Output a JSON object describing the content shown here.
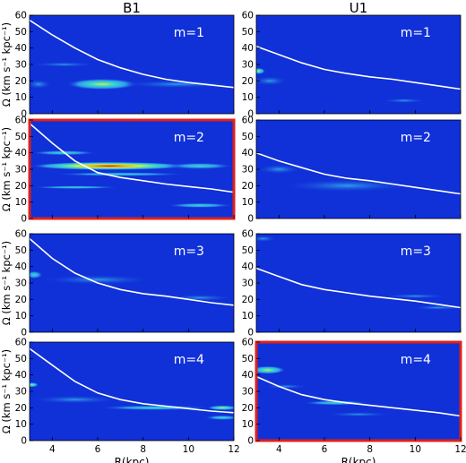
{
  "figure": {
    "column_titles": [
      "B1",
      "U1"
    ],
    "ylabel": "Ω (km s⁻¹ kpc⁻¹)",
    "xlabel": "R(kpc)",
    "colors": {
      "background": "#1030d8",
      "curve": "#ffffff",
      "highlight": "#e0201a"
    }
  },
  "chart_data": [
    {
      "type": "heatmap",
      "column": "B1",
      "row": 1,
      "label": "m=1",
      "highlight": false,
      "xlim": [
        3,
        12
      ],
      "ylim": [
        0,
        60
      ],
      "xticks": [
        4,
        6,
        8,
        10,
        12
      ],
      "yticks": [
        0,
        10,
        20,
        30,
        40,
        50,
        60
      ],
      "curve": {
        "x": [
          3,
          4,
          5,
          6,
          7,
          8,
          9,
          10,
          11,
          12
        ],
        "y": [
          57,
          48,
          40,
          33,
          28,
          24,
          21,
          19,
          17.5,
          16
        ]
      },
      "features": [
        {
          "x": 6.2,
          "y": 18,
          "sx": 1.6,
          "sy": 3.5,
          "level": 3
        },
        {
          "x": 3.4,
          "y": 18,
          "sx": 0.6,
          "sy": 3,
          "level": 1
        },
        {
          "x": 9.5,
          "y": 18,
          "sx": 2.5,
          "sy": 2.5,
          "level": 1
        },
        {
          "x": 4.5,
          "y": 30,
          "sx": 1.5,
          "sy": 1.5,
          "level": 1
        }
      ]
    },
    {
      "type": "heatmap",
      "column": "U1",
      "row": 1,
      "label": "m=1",
      "highlight": false,
      "xlim": [
        3,
        12
      ],
      "ylim": [
        0,
        60
      ],
      "xticks": [
        4,
        6,
        8,
        10,
        12
      ],
      "yticks": [
        0,
        10,
        20,
        30,
        40,
        50,
        60
      ],
      "curve": {
        "x": [
          3,
          4,
          5,
          6,
          7,
          8,
          9,
          10,
          11,
          12
        ],
        "y": [
          41,
          36,
          31,
          27,
          24.5,
          22.5,
          21,
          19,
          17,
          15
        ]
      },
      "features": [
        {
          "x": 3.1,
          "y": 26,
          "sx": 0.3,
          "sy": 2,
          "level": 3
        },
        {
          "x": 3.6,
          "y": 20,
          "sx": 0.8,
          "sy": 3,
          "level": 1
        },
        {
          "x": 9.5,
          "y": 8,
          "sx": 1,
          "sy": 1.5,
          "level": 1
        }
      ]
    },
    {
      "type": "heatmap",
      "column": "B1",
      "row": 2,
      "label": "m=2",
      "highlight": true,
      "xlim": [
        3,
        12
      ],
      "ylim": [
        0,
        60
      ],
      "xticks": [
        4,
        6,
        8,
        10,
        12
      ],
      "yticks": [
        0,
        10,
        20,
        30,
        40,
        50,
        60
      ],
      "curve": {
        "x": [
          3,
          4,
          5,
          6,
          7,
          8,
          9,
          10,
          11,
          12
        ],
        "y": [
          58,
          46,
          35,
          28,
          25,
          23,
          21,
          19.5,
          18,
          16
        ]
      },
      "features": [
        {
          "x": 6.5,
          "y": 32,
          "sx": 3.5,
          "sy": 2.5,
          "level": 5
        },
        {
          "x": 10.5,
          "y": 32,
          "sx": 1.5,
          "sy": 2,
          "level": 2
        },
        {
          "x": 4.5,
          "y": 40,
          "sx": 1.5,
          "sy": 1.5,
          "level": 2
        },
        {
          "x": 7,
          "y": 27,
          "sx": 3,
          "sy": 1.2,
          "level": 2
        },
        {
          "x": 5,
          "y": 19,
          "sx": 2,
          "sy": 1,
          "level": 2
        },
        {
          "x": 10.5,
          "y": 8,
          "sx": 1.5,
          "sy": 1.5,
          "level": 2
        }
      ]
    },
    {
      "type": "heatmap",
      "column": "U1",
      "row": 2,
      "label": "m=2",
      "highlight": false,
      "xlim": [
        3,
        12
      ],
      "ylim": [
        0,
        60
      ],
      "xticks": [
        4,
        6,
        8,
        10,
        12
      ],
      "yticks": [
        0,
        10,
        20,
        30,
        40,
        50,
        60
      ],
      "curve": {
        "x": [
          3,
          4,
          5,
          6,
          7,
          8,
          9,
          10,
          11,
          12
        ],
        "y": [
          40,
          35,
          31,
          27,
          24.5,
          23,
          21,
          19,
          17,
          15
        ]
      },
      "features": [
        {
          "x": 7,
          "y": 20,
          "sx": 3,
          "sy": 4,
          "level": 1
        },
        {
          "x": 4,
          "y": 30,
          "sx": 1,
          "sy": 3,
          "level": 1
        }
      ]
    },
    {
      "type": "heatmap",
      "column": "B1",
      "row": 3,
      "label": "m=3",
      "highlight": false,
      "xlim": [
        3,
        12
      ],
      "ylim": [
        0,
        60
      ],
      "xticks": [
        4,
        6,
        8,
        10,
        12
      ],
      "yticks": [
        0,
        10,
        20,
        30,
        40,
        50,
        60
      ],
      "curve": {
        "x": [
          3,
          4,
          5,
          6,
          7,
          8,
          9,
          10,
          11,
          12
        ],
        "y": [
          57,
          45,
          36,
          30,
          26,
          23.5,
          22,
          20,
          18,
          16.5
        ]
      },
      "features": [
        {
          "x": 3.2,
          "y": 35,
          "sx": 0.4,
          "sy": 2.5,
          "level": 2
        },
        {
          "x": 6,
          "y": 32,
          "sx": 2.5,
          "sy": 3,
          "level": 1
        },
        {
          "x": 10.5,
          "y": 21,
          "sx": 1.5,
          "sy": 2,
          "level": 1
        }
      ]
    },
    {
      "type": "heatmap",
      "column": "U1",
      "row": 3,
      "label": "m=3",
      "highlight": false,
      "xlim": [
        3,
        12
      ],
      "ylim": [
        0,
        60
      ],
      "xticks": [
        4,
        6,
        8,
        10,
        12
      ],
      "yticks": [
        0,
        10,
        20,
        30,
        40,
        50,
        60
      ],
      "curve": {
        "x": [
          3,
          4,
          5,
          6,
          7,
          8,
          9,
          10,
          11,
          12
        ],
        "y": [
          39,
          34,
          29,
          26,
          24,
          22,
          20.5,
          19,
          17,
          15
        ]
      },
      "features": [
        {
          "x": 3.3,
          "y": 57,
          "sx": 0.6,
          "sy": 2,
          "level": 1
        },
        {
          "x": 10,
          "y": 22,
          "sx": 1.5,
          "sy": 1.5,
          "level": 1
        },
        {
          "x": 11,
          "y": 15,
          "sx": 1.2,
          "sy": 1.5,
          "level": 1
        }
      ]
    },
    {
      "type": "heatmap",
      "column": "B1",
      "row": 4,
      "label": "m=4",
      "highlight": false,
      "xlim": [
        3,
        12
      ],
      "ylim": [
        0,
        60
      ],
      "xticks": [
        4,
        6,
        8,
        10,
        12
      ],
      "yticks": [
        0,
        10,
        20,
        30,
        40,
        50,
        60
      ],
      "curve": {
        "x": [
          3,
          4,
          5,
          6,
          7,
          8,
          9,
          10,
          11,
          12
        ],
        "y": [
          56,
          46,
          36,
          29,
          25,
          22.5,
          21,
          19.5,
          18,
          17
        ]
      },
      "features": [
        {
          "x": 3.1,
          "y": 34,
          "sx": 0.3,
          "sy": 1.5,
          "level": 3
        },
        {
          "x": 8.5,
          "y": 20,
          "sx": 2.5,
          "sy": 1.5,
          "level": 2
        },
        {
          "x": 11.5,
          "y": 20,
          "sx": 0.7,
          "sy": 1.5,
          "level": 3
        },
        {
          "x": 11.5,
          "y": 14,
          "sx": 0.8,
          "sy": 1.5,
          "level": 2
        },
        {
          "x": 5,
          "y": 25,
          "sx": 2,
          "sy": 2.5,
          "level": 1
        }
      ]
    },
    {
      "type": "heatmap",
      "column": "U1",
      "row": 4,
      "label": "m=4",
      "highlight": true,
      "xlim": [
        3,
        12
      ],
      "ylim": [
        0,
        60
      ],
      "xticks": [
        4,
        6,
        8,
        10,
        12
      ],
      "yticks": [
        0,
        10,
        20,
        30,
        40,
        50,
        60
      ],
      "curve": {
        "x": [
          3,
          4,
          5,
          6,
          7,
          8,
          9,
          10,
          11,
          12
        ],
        "y": [
          39,
          33,
          28,
          25,
          23,
          21.5,
          20,
          18.5,
          17,
          15
        ]
      },
      "features": [
        {
          "x": 3.5,
          "y": 43,
          "sx": 0.8,
          "sy": 2.5,
          "level": 3
        },
        {
          "x": 4.3,
          "y": 33,
          "sx": 1,
          "sy": 1.5,
          "level": 1
        },
        {
          "x": 6.5,
          "y": 23,
          "sx": 1.5,
          "sy": 1.5,
          "level": 2
        },
        {
          "x": 7.5,
          "y": 16,
          "sx": 1.5,
          "sy": 1.5,
          "level": 1
        }
      ]
    }
  ]
}
